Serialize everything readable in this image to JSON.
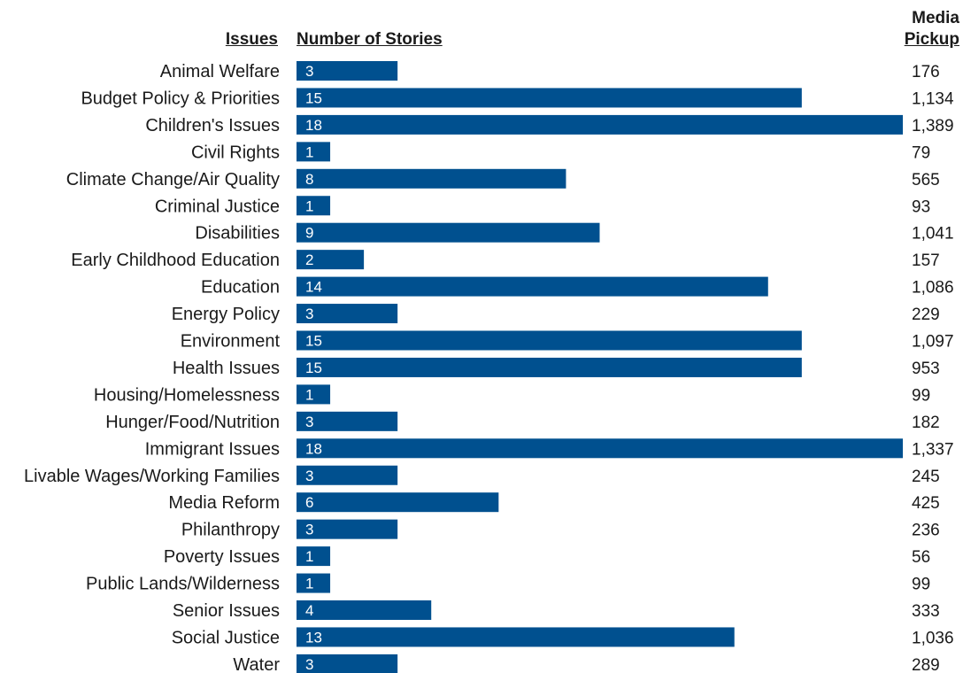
{
  "headers": {
    "issues": "Issues",
    "stories": "Number of Stories",
    "media_line1": "Media",
    "media_line2": "Pickup"
  },
  "colors": {
    "bar": "#00508f"
  },
  "chart_data": {
    "type": "bar",
    "orientation": "horizontal",
    "xlim": [
      0,
      18
    ],
    "categories": [
      "Animal Welfare",
      "Budget Policy & Priorities",
      "Children's Issues",
      "Civil Rights",
      "Climate Change/Air Quality",
      "Criminal Justice",
      "Disabilities",
      "Early Childhood Education",
      "Education",
      "Energy Policy",
      "Environment",
      "Health Issues",
      "Housing/Homelessness",
      "Hunger/Food/Nutrition",
      "Immigrant Issues",
      "Livable Wages/Working Families",
      "Media Reform",
      "Philanthropy",
      "Poverty Issues",
      "Public Lands/Wilderness",
      "Senior Issues",
      "Social Justice",
      "Water"
    ],
    "series": [
      {
        "name": "Number of Stories",
        "values": [
          3,
          15,
          18,
          1,
          8,
          1,
          9,
          2,
          14,
          3,
          15,
          15,
          1,
          3,
          18,
          3,
          6,
          3,
          1,
          1,
          4,
          13,
          3
        ]
      },
      {
        "name": "Media Pickup",
        "values": [
          "176",
          "1,134",
          "1,389",
          "79",
          "565",
          "93",
          "1,041",
          "157",
          "1,086",
          "229",
          "1,097",
          "953",
          "99",
          "182",
          "1,337",
          "245",
          "425",
          "236",
          "56",
          "99",
          "333",
          "1,036",
          "289"
        ]
      }
    ]
  }
}
